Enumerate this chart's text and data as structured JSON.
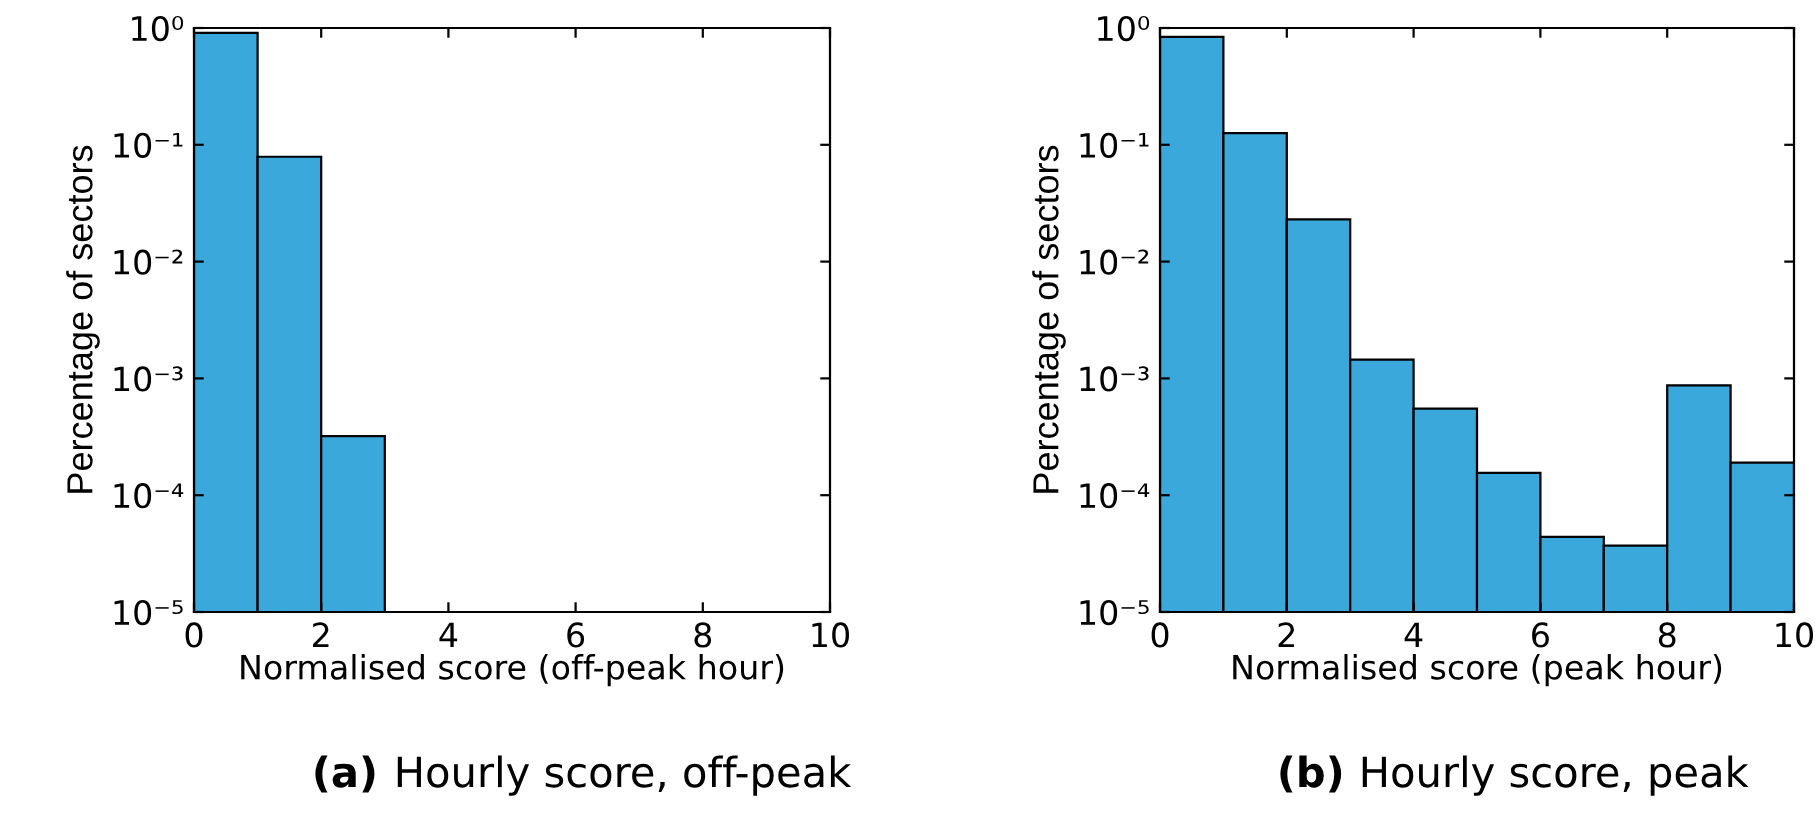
{
  "chart_data": [
    {
      "type": "histogram",
      "xlabel": "Normalised score (off-peak hour)",
      "ylabel": "Percentage of sectors",
      "bins": [
        0,
        1,
        2,
        3
      ],
      "values": [
        0.91,
        0.079,
        0.00032
      ],
      "color": "#3aa8db",
      "log": "y",
      "xlim": [
        0,
        10
      ],
      "xticks": [
        0,
        2,
        4,
        6,
        8,
        10
      ],
      "ylim": [
        1e-05,
        1
      ],
      "yticks": [
        {
          "value": 1e-05,
          "label": "10⁻⁵"
        },
        {
          "value": 0.0001,
          "label": "10⁻⁴"
        },
        {
          "value": 0.001,
          "label": "10⁻³"
        },
        {
          "value": 0.01,
          "label": "10⁻²"
        },
        {
          "value": 0.1,
          "label": "10⁻¹"
        },
        {
          "value": 1,
          "label": "10⁰"
        }
      ],
      "grid": false,
      "annotations": [
        "(a) Hourly score, off-peak"
      ]
    },
    {
      "type": "histogram",
      "xlabel": "Normalised score (peak hour)",
      "ylabel": "Percentage of sectors",
      "bins": [
        0,
        1,
        2,
        3,
        4,
        5,
        6,
        7,
        8,
        9,
        10
      ],
      "values": [
        0.84,
        0.126,
        0.023,
        0.00145,
        0.00055,
        0.000155,
        4.4e-05,
        3.7e-05,
        0.00087,
        0.00019
      ],
      "color": "#3aa8db",
      "log": "y",
      "xlim": [
        0,
        10
      ],
      "xticks": [
        0,
        2,
        4,
        6,
        8,
        10
      ],
      "ylim": [
        1e-05,
        1
      ],
      "yticks": [
        {
          "value": 1e-05,
          "label": "10⁻⁵"
        },
        {
          "value": 0.0001,
          "label": "10⁻⁴"
        },
        {
          "value": 0.001,
          "label": "10⁻³"
        },
        {
          "value": 0.01,
          "label": "10⁻²"
        },
        {
          "value": 0.1,
          "label": "10⁻¹"
        },
        {
          "value": 1,
          "label": "10⁰"
        }
      ],
      "grid": false,
      "annotations": [
        "(b) Hourly score, peak"
      ]
    }
  ]
}
